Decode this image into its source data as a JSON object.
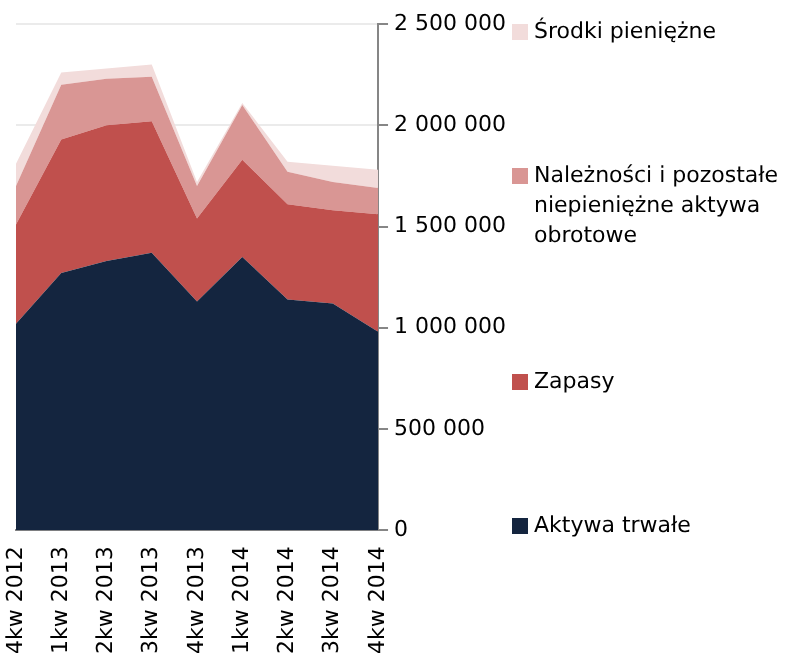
{
  "chart_data": {
    "type": "area",
    "stacked": true,
    "categories": [
      "4kw 2012",
      "1kw 2013",
      "2kw 2013",
      "3kw 2013",
      "4kw 2013",
      "1kw 2014",
      "2kw 2014",
      "3kw 2014",
      "4kw 2014"
    ],
    "series": [
      {
        "name": "Aktywa trwałe",
        "color": "#14253f",
        "values": [
          1020000,
          1270000,
          1330000,
          1370000,
          1130000,
          1350000,
          1140000,
          1120000,
          980000
        ]
      },
      {
        "name": "Zapasy",
        "color": "#c0504d",
        "values": [
          490000,
          660000,
          670000,
          650000,
          410000,
          480000,
          470000,
          460000,
          580000
        ]
      },
      {
        "name": "Należności i pozostałe niepieniężne aktywa obrotowe",
        "color": "#d99694",
        "values": [
          190000,
          270000,
          230000,
          220000,
          160000,
          270000,
          160000,
          140000,
          130000
        ]
      },
      {
        "name": "Środki pieniężne",
        "color": "#f2dcdb",
        "values": [
          110000,
          60000,
          50000,
          60000,
          20000,
          10000,
          50000,
          80000,
          90000
        ]
      }
    ],
    "ylim": [
      0,
      2500000
    ],
    "yticks": [
      {
        "value": 0,
        "label": "0"
      },
      {
        "value": 500000,
        "label": "500 000"
      },
      {
        "value": 1000000,
        "label": "1 000 000"
      },
      {
        "value": 1500000,
        "label": "1 500 000"
      },
      {
        "value": 2000000,
        "label": "2 000 000"
      },
      {
        "value": 2500000,
        "label": "2 500 000"
      }
    ],
    "grid": "y",
    "legend": "right"
  }
}
